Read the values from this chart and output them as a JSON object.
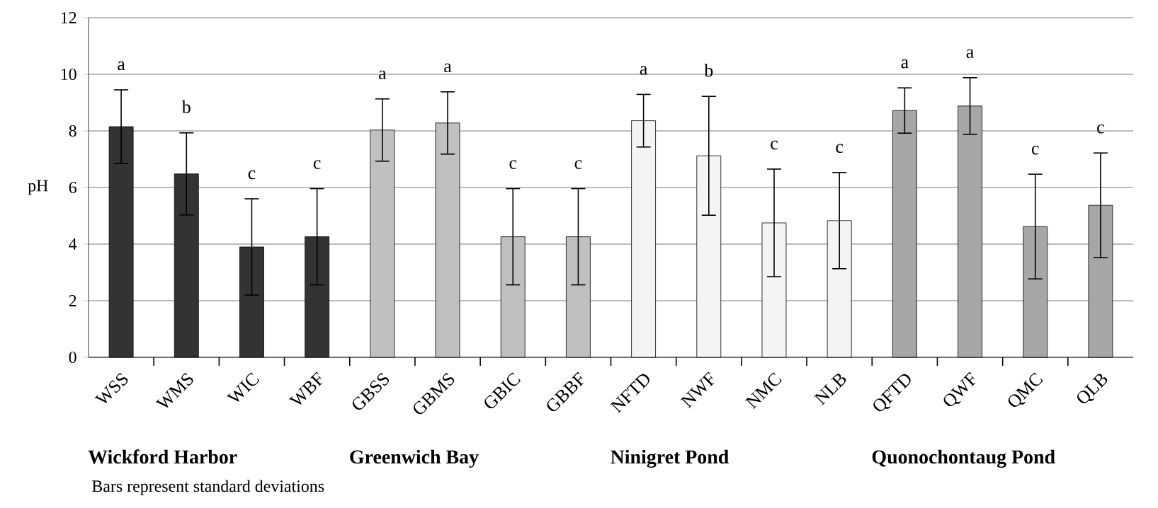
{
  "chart_data": {
    "type": "bar",
    "ylabel": "pH",
    "categories": [
      "WSS",
      "WMS",
      "WIC",
      "WBF",
      "GBSS",
      "GBMS",
      "GBIC",
      "GBBF",
      "NFTD",
      "NWF",
      "NMC",
      "NLB",
      "QFTD",
      "QWF",
      "QMC",
      "QLB"
    ],
    "values": [
      8.15,
      6.48,
      3.9,
      4.26,
      8.03,
      8.28,
      4.26,
      4.26,
      8.36,
      7.12,
      4.75,
      4.83,
      8.72,
      8.88,
      4.62,
      5.37
    ],
    "errors": [
      1.3,
      1.45,
      1.7,
      1.7,
      1.1,
      1.1,
      1.7,
      1.7,
      0.93,
      2.1,
      1.9,
      1.7,
      0.8,
      1.0,
      1.85,
      1.85
    ],
    "colors": [
      "#333333",
      "#333333",
      "#333333",
      "#333333",
      "#c0c0c0",
      "#c0c0c0",
      "#c0c0c0",
      "#c0c0c0",
      "#f4f4f4",
      "#f4f4f4",
      "#f4f4f4",
      "#f4f4f4",
      "#a6a6a6",
      "#a6a6a6",
      "#a6a6a6",
      "#a6a6a6"
    ],
    "ylim": [
      0,
      12
    ],
    "yticks": [
      0,
      2,
      4,
      6,
      8,
      10,
      12
    ],
    "grid": "y",
    "annotations": [
      "a",
      "b",
      "c",
      "c",
      "a",
      "a",
      "c",
      "c",
      "a",
      "b",
      "c",
      "c",
      "a",
      "a",
      "c",
      "c",
      "Wickford Harbor",
      "Greenwich Bay",
      "Ninigret Pond",
      "Quonochontaug Pond",
      "Bars represent standard deviations"
    ]
  }
}
